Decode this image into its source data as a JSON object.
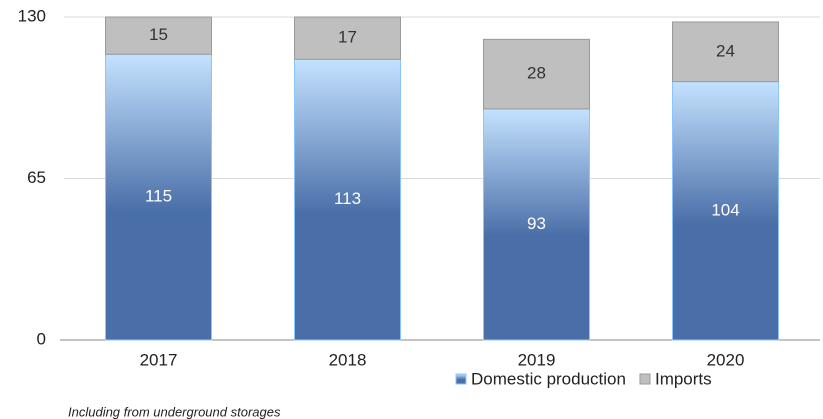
{
  "chart_data": {
    "type": "stacked_bar",
    "categories": [
      "2017",
      "2018",
      "2019",
      "2020"
    ],
    "series": [
      {
        "name": "Domestic production",
        "color": "#4a6fa8",
        "values": [
          115,
          113,
          93,
          104
        ]
      },
      {
        "name": "Imports",
        "color": "#bfbfbf",
        "values": [
          15,
          17,
          28,
          24
        ]
      }
    ],
    "ylim": [
      0,
      130
    ],
    "yticks": [
      0,
      65,
      130
    ],
    "grid": true,
    "legend": "bottom-right",
    "footnote": "Including from underground storages"
  }
}
